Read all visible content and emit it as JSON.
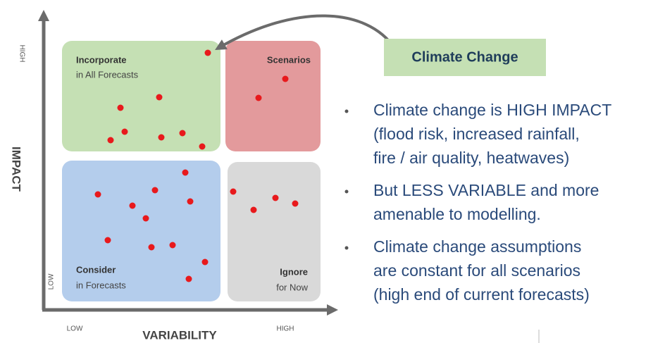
{
  "axes": {
    "y": {
      "label": "IMPACT",
      "high": "HIGH",
      "low": "LOW"
    },
    "x": {
      "label": "VARIABILITY",
      "low": "LOW",
      "high": "HIGH"
    }
  },
  "quadrants": [
    {
      "title": "Incorporate",
      "subtitle": "in All Forecasts"
    },
    {
      "title": "Scenarios"
    },
    {
      "title": "Consider",
      "subtitle": "in Forecasts"
    },
    {
      "title": "Ignore",
      "subtitle": "for Now"
    }
  ],
  "callout": "Climate Change",
  "bullets": [
    [
      "Climate change is HIGH IMPACT",
      "(flood risk, increased rainfall,",
      "fire / air quality, heatwaves)"
    ],
    [
      "But LESS VARIABLE and more",
      "amenable to modelling."
    ],
    [
      "Climate change assumptions",
      "are constant for all scenarios",
      "(high end of current forecasts)"
    ]
  ]
}
